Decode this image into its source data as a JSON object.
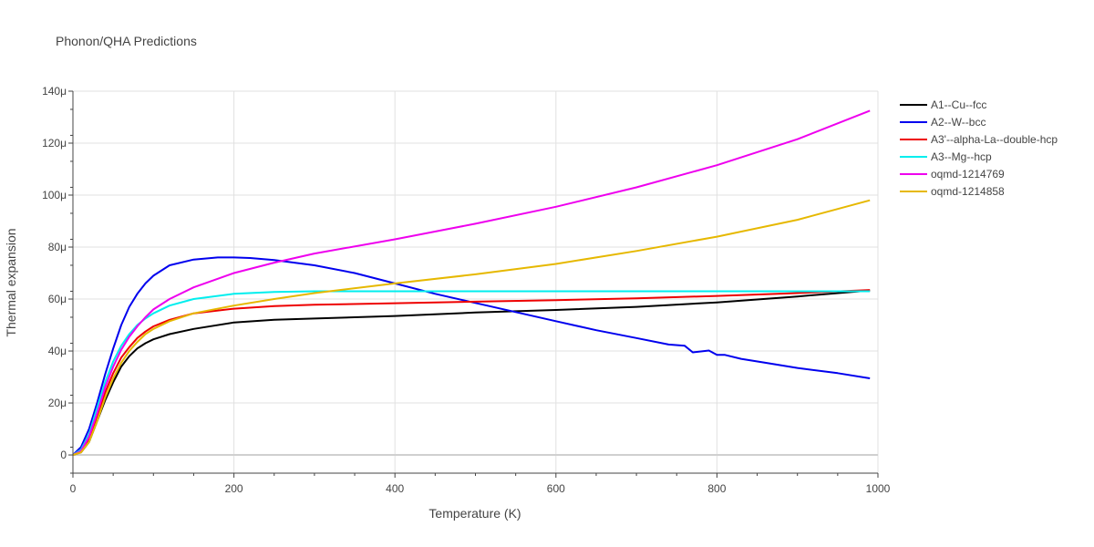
{
  "chart_data": {
    "type": "line",
    "title": "Phonon/QHA Predictions",
    "xlabel": "Temperature (K)",
    "ylabel": "Thermal expansion",
    "xlim": [
      0,
      1000
    ],
    "ylim": [
      -7,
      140
    ],
    "x_ticks": [
      0,
      200,
      400,
      600,
      800,
      1000
    ],
    "x_tick_labels": [
      "0",
      "200",
      "400",
      "600",
      "800",
      "1000"
    ],
    "y_ticks": [
      0,
      20,
      40,
      60,
      80,
      100,
      120,
      140
    ],
    "y_tick_labels": [
      "0",
      "20μ",
      "40μ",
      "60μ",
      "80μ",
      "100μ",
      "120μ",
      "140μ"
    ],
    "grid": true,
    "legend_position": "top-right, outside plot",
    "series": [
      {
        "name": "A1--Cu--fcc",
        "color": "#000000",
        "x": [
          0,
          10,
          20,
          30,
          40,
          50,
          60,
          70,
          80,
          90,
          100,
          120,
          150,
          200,
          250,
          300,
          400,
          500,
          600,
          700,
          800,
          900,
          990
        ],
        "y": [
          0,
          1,
          5,
          13,
          21,
          28,
          34,
          38,
          41,
          43,
          44.5,
          46.5,
          48.5,
          51,
          52,
          52.5,
          53.5,
          54.8,
          55.8,
          57,
          58.7,
          61,
          63.3
        ]
      },
      {
        "name": "A2--W--bcc",
        "color": "#0000ee",
        "x": [
          0,
          10,
          20,
          30,
          40,
          50,
          60,
          70,
          80,
          90,
          100,
          120,
          150,
          180,
          200,
          220,
          250,
          300,
          350,
          400,
          450,
          500,
          550,
          600,
          650,
          700,
          740,
          760,
          770,
          790,
          800,
          810,
          830,
          860,
          900,
          950,
          990
        ],
        "y": [
          0,
          3,
          10,
          20,
          31,
          41,
          50,
          57,
          62,
          66,
          69,
          73,
          75.2,
          76,
          76,
          75.8,
          75,
          73,
          70,
          66,
          62,
          58.5,
          55,
          51.5,
          48,
          45,
          42.5,
          42,
          39.5,
          40.2,
          38.5,
          38.5,
          37,
          35.5,
          33.5,
          31.5,
          29.5
        ]
      },
      {
        "name": "A3'--alpha-La--double-hcp",
        "color": "#ee0000",
        "x": [
          0,
          10,
          20,
          30,
          40,
          50,
          60,
          70,
          80,
          90,
          100,
          120,
          150,
          200,
          250,
          300,
          400,
          500,
          600,
          700,
          800,
          900,
          990
        ],
        "y": [
          0,
          1.5,
          6,
          15,
          24,
          31.5,
          37.5,
          41.5,
          45,
          47.5,
          49.5,
          52,
          54.5,
          56.3,
          57.3,
          57.8,
          58.4,
          59,
          59.6,
          60.3,
          61.2,
          62.3,
          63.5
        ]
      },
      {
        "name": "A3--Mg--hcp",
        "color": "#00eeee",
        "x": [
          0,
          10,
          20,
          30,
          40,
          50,
          60,
          70,
          80,
          90,
          100,
          120,
          150,
          200,
          250,
          300,
          400,
          500,
          600,
          700,
          800,
          900,
          990
        ],
        "y": [
          0,
          2,
          8,
          18,
          28,
          36,
          42,
          46.5,
          50,
          52.5,
          54.5,
          57.5,
          60,
          62,
          62.7,
          63,
          63,
          63,
          63,
          63,
          63,
          63,
          63
        ]
      },
      {
        "name": "oqmd-1214769",
        "color": "#ee00ee",
        "x": [
          0,
          10,
          20,
          30,
          40,
          50,
          60,
          70,
          80,
          90,
          100,
          120,
          150,
          200,
          250,
          300,
          400,
          500,
          600,
          700,
          800,
          900,
          990
        ],
        "y": [
          0,
          1.5,
          7,
          16,
          26,
          34,
          40.5,
          45.5,
          49.5,
          53,
          56,
          60,
          64.5,
          70,
          74,
          77.5,
          83,
          89,
          95.5,
          103,
          111.5,
          121.5,
          132.5
        ]
      },
      {
        "name": "oqmd-1214858",
        "color": "#e6b800",
        "x": [
          0,
          10,
          20,
          30,
          40,
          50,
          60,
          70,
          80,
          90,
          100,
          120,
          150,
          200,
          250,
          300,
          400,
          500,
          600,
          700,
          800,
          900,
          990
        ],
        "y": [
          0,
          1,
          5,
          13,
          22,
          29.5,
          35.5,
          40,
          43.5,
          46.5,
          48.5,
          51.5,
          54.5,
          57.5,
          60,
          62.3,
          66,
          69.5,
          73.5,
          78.5,
          84,
          90.5,
          98
        ]
      }
    ]
  }
}
